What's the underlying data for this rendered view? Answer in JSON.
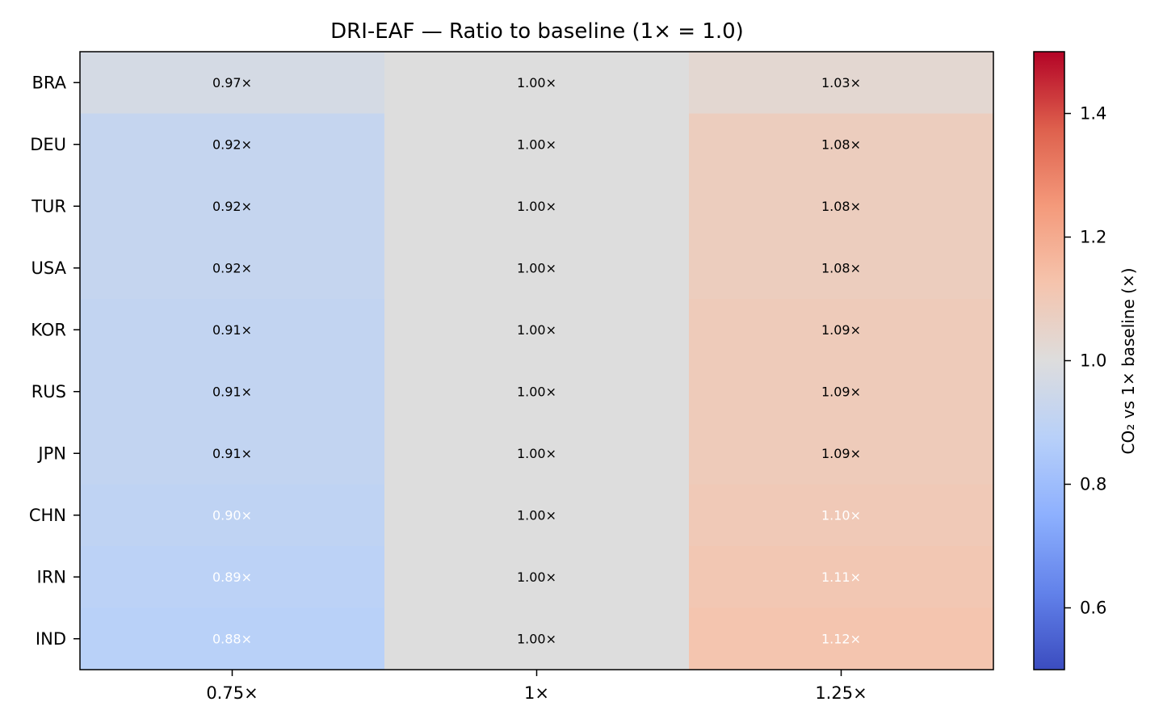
{
  "chart_data": {
    "type": "heatmap",
    "title": "DRI-EAF — Ratio to baseline (1× = 1.0)",
    "x_categories": [
      "0.75×",
      "1×",
      "1.25×"
    ],
    "y_categories": [
      "BRA",
      "DEU",
      "TUR",
      "USA",
      "KOR",
      "RUS",
      "JPN",
      "CHN",
      "IRN",
      "IND"
    ],
    "values": [
      [
        0.97,
        1.0,
        1.03
      ],
      [
        0.92,
        1.0,
        1.08
      ],
      [
        0.92,
        1.0,
        1.08
      ],
      [
        0.92,
        1.0,
        1.08
      ],
      [
        0.91,
        1.0,
        1.09
      ],
      [
        0.91,
        1.0,
        1.09
      ],
      [
        0.91,
        1.0,
        1.09
      ],
      [
        0.9,
        1.0,
        1.1
      ],
      [
        0.89,
        1.0,
        1.11
      ],
      [
        0.88,
        1.0,
        1.12
      ]
    ],
    "cell_labels": [
      [
        "0.97×",
        "1.00×",
        "1.03×"
      ],
      [
        "0.92×",
        "1.00×",
        "1.08×"
      ],
      [
        "0.92×",
        "1.00×",
        "1.08×"
      ],
      [
        "0.92×",
        "1.00×",
        "1.08×"
      ],
      [
        "0.91×",
        "1.00×",
        "1.09×"
      ],
      [
        "0.91×",
        "1.00×",
        "1.09×"
      ],
      [
        "0.91×",
        "1.00×",
        "1.09×"
      ],
      [
        "0.90×",
        "1.00×",
        "1.10×"
      ],
      [
        "0.89×",
        "1.00×",
        "1.11×"
      ],
      [
        "0.88×",
        "1.00×",
        "1.12×"
      ]
    ],
    "colormap": "coolwarm",
    "color_range": [
      0.5,
      1.5
    ],
    "colorbar": {
      "label": "CO₂ vs 1× baseline (×)",
      "ticks": [
        0.6,
        0.8,
        1.0,
        1.2,
        1.4
      ],
      "tick_labels": [
        "0.6",
        "0.8",
        "1.0",
        "1.2",
        "1.4"
      ]
    },
    "grid": false
  },
  "colors": {
    "axis": "#000000",
    "label_dark": "#000000",
    "label_light": "#ffffff"
  }
}
